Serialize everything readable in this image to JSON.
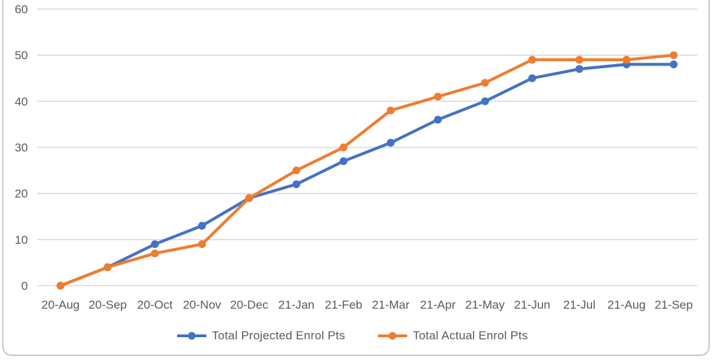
{
  "chart_data": {
    "type": "line",
    "title": "",
    "xlabel": "",
    "ylabel": "",
    "categories": [
      "20-Aug",
      "20-Sep",
      "20-Oct",
      "20-Nov",
      "20-Dec",
      "21-Jan",
      "21-Feb",
      "21-Mar",
      "21-Apr",
      "21-May",
      "21-Jun",
      "21-Jul",
      "21-Aug",
      "21-Sep"
    ],
    "series": [
      {
        "name": "Total Projected Enrol Pts",
        "color": "#4472C4",
        "marker": "circle",
        "values": [
          0,
          4,
          9,
          13,
          19,
          22,
          27,
          31,
          36,
          40,
          45,
          47,
          48,
          48
        ]
      },
      {
        "name": "Total Actual Enrol Pts",
        "color": "#ED7D31",
        "marker": "circle",
        "values": [
          0,
          4,
          7,
          9,
          19,
          25,
          30,
          38,
          41,
          44,
          49,
          49,
          49,
          50
        ]
      }
    ],
    "ylim": [
      0,
      60
    ],
    "ytick_step": 10,
    "ytick_labels": [
      "0",
      "10",
      "20",
      "30",
      "40",
      "50",
      "60"
    ],
    "grid": "horizontal",
    "legend_position": "bottom"
  },
  "colors": {
    "background": "#FFFFFF",
    "gridline": "#D9D9D9",
    "axis_text": "#595959",
    "card_border": "#C9C9C9",
    "series_projected": "#4472C4",
    "series_actual": "#ED7D31"
  }
}
